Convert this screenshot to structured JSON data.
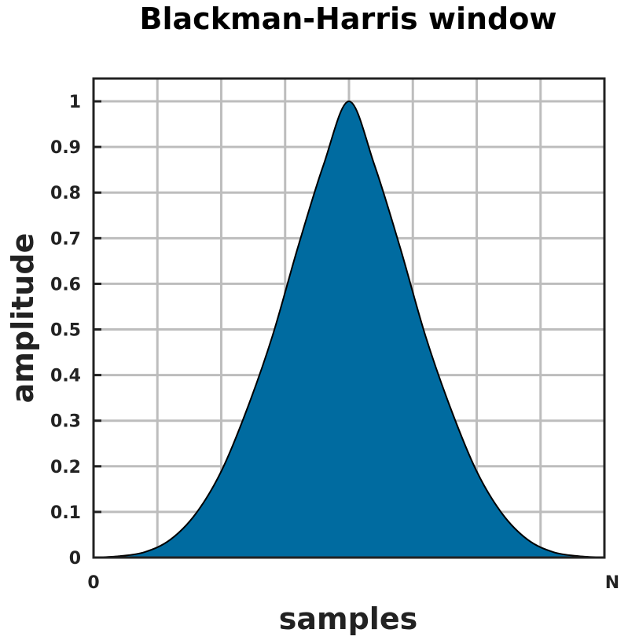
{
  "chart_data": {
    "type": "area",
    "title": "Blackman-Harris window",
    "xlabel": "samples",
    "ylabel": "amplitude",
    "x_tick_labels": [
      "0",
      "N"
    ],
    "y_ticks": [
      0,
      0.1,
      0.2,
      0.3,
      0.4,
      0.5,
      0.6,
      0.7,
      0.8,
      0.9,
      1
    ],
    "y_tick_labels": [
      "0",
      "0.1",
      "0.2",
      "0.3",
      "0.4",
      "0.5",
      "0.6",
      "0.7",
      "0.8",
      "0.9",
      "1"
    ],
    "xlim": [
      0,
      1
    ],
    "ylim": [
      0,
      1.05
    ],
    "grid": true,
    "grid_x_divisions": 8,
    "x": [
      0,
      0.05,
      0.1,
      0.15,
      0.2,
      0.25,
      0.3,
      0.35,
      0.4,
      0.45,
      0.5,
      0.55,
      0.6,
      0.65,
      0.7,
      0.75,
      0.8,
      0.85,
      0.9,
      0.95,
      1
    ],
    "values": [
      0.0001,
      0.003,
      0.012,
      0.039,
      0.096,
      0.189,
      0.324,
      0.485,
      0.68,
      0.86,
      1.0,
      0.86,
      0.68,
      0.485,
      0.324,
      0.189,
      0.096,
      0.039,
      0.012,
      0.003,
      0.0001
    ],
    "fill_color": "#006ba0",
    "line_color": "#000000",
    "grid_color": "#bdbdbd"
  }
}
